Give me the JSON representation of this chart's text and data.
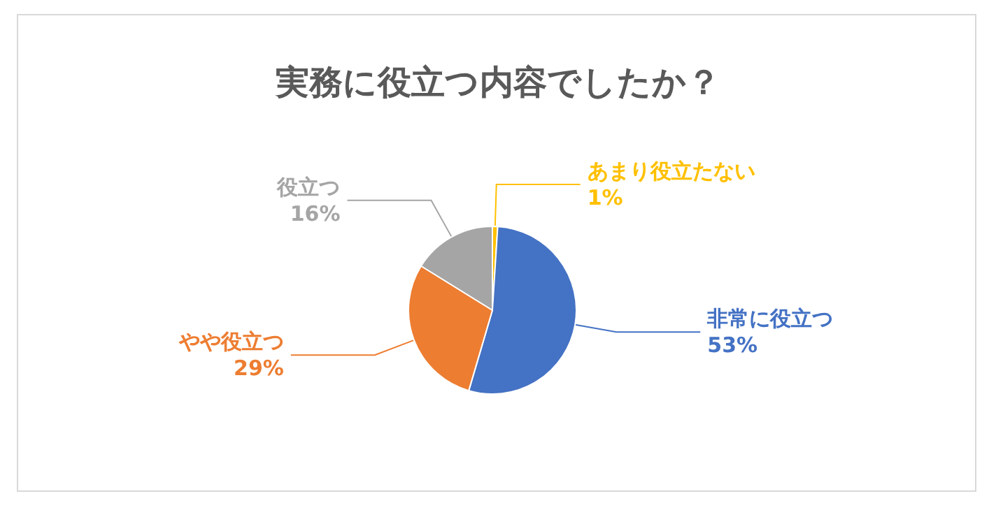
{
  "chart_data": {
    "type": "pie",
    "title": "実務に役立つ内容でしたか？",
    "categories": [
      "あまり役立たない",
      "非常に役立つ",
      "やや役立つ",
      "役立つ"
    ],
    "values": [
      1,
      53,
      29,
      16
    ],
    "colors": [
      "#ffc000",
      "#4472c4",
      "#ed7d31",
      "#a5a5a5"
    ],
    "value_labels": [
      "1%",
      "53%",
      "29%",
      "16%"
    ],
    "legend": false
  }
}
